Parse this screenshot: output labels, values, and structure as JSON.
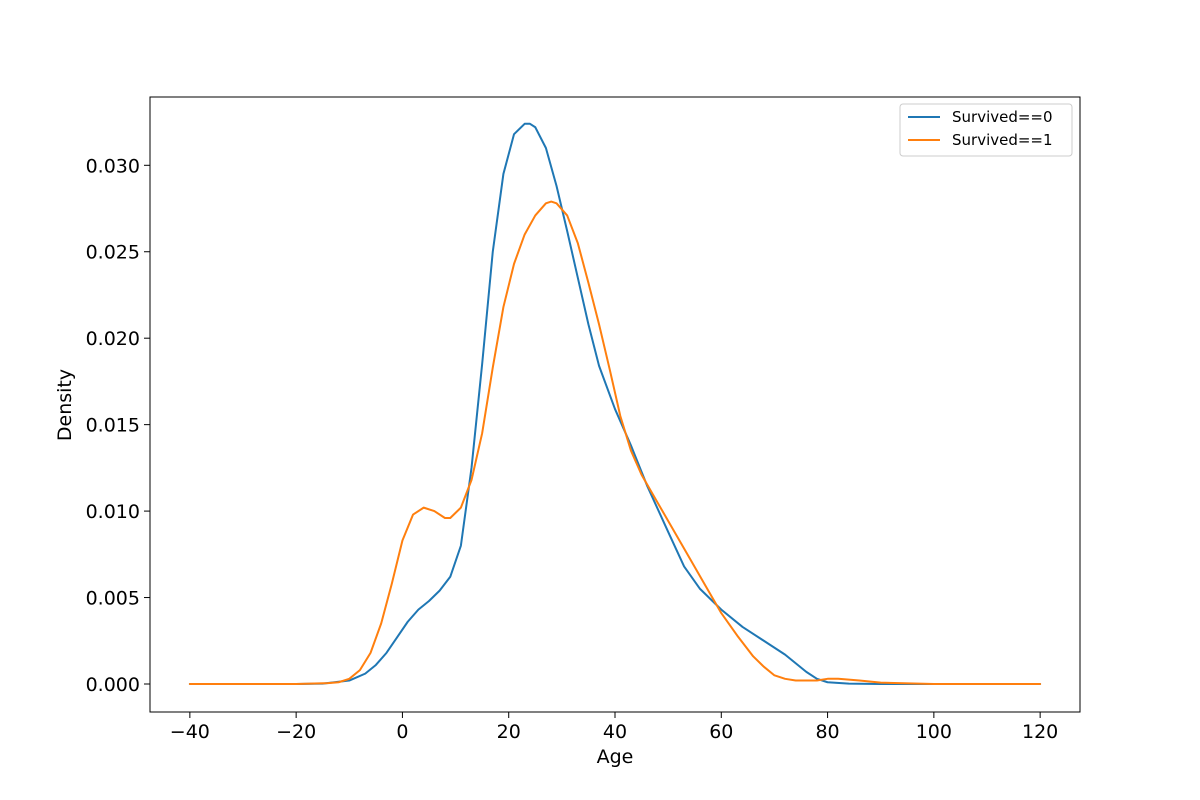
{
  "chart_data": {
    "type": "line",
    "title": "",
    "xlabel": "Age",
    "ylabel": "Density",
    "xlim": [
      -47.5,
      127.5
    ],
    "ylim": [
      -0.00162,
      0.03395
    ],
    "x_ticks": [
      -40,
      -20,
      0,
      20,
      40,
      60,
      80,
      100,
      120
    ],
    "x_tick_labels": [
      "−40",
      "−20",
      "0",
      "20",
      "40",
      "60",
      "80",
      "100",
      "120"
    ],
    "y_ticks": [
      0.0,
      0.005,
      0.01,
      0.015,
      0.02,
      0.025,
      0.03
    ],
    "y_tick_labels": [
      "0.000",
      "0.005",
      "0.010",
      "0.015",
      "0.020",
      "0.025",
      "0.030"
    ],
    "grid": false,
    "legend_position": "top-right",
    "series": [
      {
        "name": "Survived==0",
        "color": "#1f77b4",
        "x": [
          -40,
          -20,
          -15,
          -10,
          -7,
          -5,
          -3,
          -1,
          1,
          3,
          5,
          7,
          9,
          11,
          13,
          15,
          17,
          19,
          21,
          23,
          24,
          25,
          27,
          29,
          31,
          33,
          35,
          37,
          40,
          43,
          46,
          50,
          53,
          56,
          60,
          64,
          68,
          72,
          76,
          78,
          80,
          84,
          90,
          100,
          110,
          120
        ],
        "y": [
          0.0,
          0.0,
          2e-05,
          0.0002,
          0.0006,
          0.0011,
          0.0018,
          0.0027,
          0.0036,
          0.0043,
          0.0048,
          0.0054,
          0.0062,
          0.008,
          0.0125,
          0.0185,
          0.025,
          0.0295,
          0.0318,
          0.0324,
          0.0324,
          0.0322,
          0.031,
          0.0288,
          0.0262,
          0.0235,
          0.0208,
          0.0184,
          0.0159,
          0.0138,
          0.0115,
          0.0088,
          0.0068,
          0.0055,
          0.0043,
          0.0033,
          0.0025,
          0.0017,
          0.0007,
          0.0003,
          0.0001,
          2e-05,
          0.0,
          0.0,
          0.0,
          0.0
        ]
      },
      {
        "name": "Survived==1",
        "color": "#ff7f0e",
        "x": [
          -40,
          -20,
          -14,
          -12,
          -10,
          -8,
          -6,
          -4,
          -2,
          0,
          2,
          4,
          6,
          8,
          9,
          11,
          13,
          15,
          17,
          19,
          21,
          23,
          25,
          27,
          28,
          29,
          31,
          33,
          35,
          37,
          39,
          41,
          43,
          45,
          48,
          51,
          54,
          57,
          60,
          63,
          66,
          68,
          70,
          72,
          74,
          76,
          78,
          80,
          82,
          86,
          90,
          100,
          110,
          120
        ],
        "y": [
          0.0,
          0.0,
          5e-05,
          0.0001,
          0.0003,
          0.0008,
          0.0018,
          0.0035,
          0.0058,
          0.0083,
          0.0098,
          0.0102,
          0.01,
          0.0096,
          0.0096,
          0.0102,
          0.0118,
          0.0145,
          0.0183,
          0.0218,
          0.0243,
          0.026,
          0.0271,
          0.0278,
          0.0279,
          0.0278,
          0.0271,
          0.0255,
          0.0232,
          0.0208,
          0.0182,
          0.0155,
          0.0135,
          0.0121,
          0.0105,
          0.0089,
          0.0073,
          0.0057,
          0.0041,
          0.0028,
          0.0016,
          0.001,
          0.0005,
          0.0003,
          0.0002,
          0.0002,
          0.0002,
          0.0003,
          0.0003,
          0.0002,
          8e-05,
          0.0,
          0.0,
          0.0
        ]
      }
    ]
  }
}
